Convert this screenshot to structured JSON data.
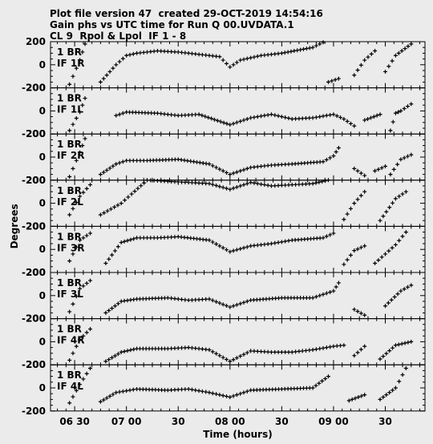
{
  "header": {
    "line1": "Plot file version 47  created 29-OCT-2019 14:54:16",
    "line2": "Gain phs vs UTC time for Run Q 00.UVDATA.1",
    "line3": "CL 9  Rpol & Lpol  IF 1 - 8"
  },
  "chart_data": {
    "type": "scatter",
    "xlabel": "Time (hours)",
    "ylabel": "Degrees",
    "xlim": [
      "06:16",
      "09:53"
    ],
    "ylim": [
      -200,
      200
    ],
    "x_ticks": [
      "06 30",
      "07 00",
      "30",
      "08 00",
      "30",
      "09 00",
      "30"
    ],
    "y_ticks": [
      "200",
      "0",
      "-200"
    ],
    "panels": [
      {
        "label1": "1 BR",
        "label2": "IF 1R"
      },
      {
        "label1": "1 BR",
        "label2": "IF 1L"
      },
      {
        "label1": "1 BR",
        "label2": "IF 2R"
      },
      {
        "label1": "1 BR",
        "label2": "IF 2L"
      },
      {
        "label1": "1 BR",
        "label2": "IF 3R"
      },
      {
        "label1": "1 BR",
        "label2": "IF 3L"
      },
      {
        "label1": "1 BR",
        "label2": "IF 4R"
      },
      {
        "label1": "1 BR",
        "label2": "IF 4L"
      }
    ],
    "series": [
      {
        "panel": 0,
        "segments": [
          [
            [
              6.45,
              -170
            ],
            [
              6.55,
              40
            ],
            [
              6.6,
              180
            ]
          ],
          [
            [
              6.75,
              -150
            ],
            [
              6.9,
              0
            ],
            [
              7.0,
              80
            ],
            [
              7.1,
              100
            ],
            [
              7.3,
              120
            ],
            [
              7.5,
              110
            ],
            [
              7.7,
              90
            ],
            [
              7.9,
              70
            ],
            [
              8.0,
              -20
            ],
            [
              8.1,
              40
            ],
            [
              8.3,
              80
            ],
            [
              8.5,
              100
            ],
            [
              8.8,
              150
            ],
            [
              8.9,
              195
            ]
          ],
          [
            [
              8.95,
              -150
            ],
            [
              9.05,
              -120
            ]
          ],
          [
            [
              9.2,
              -90
            ],
            [
              9.3,
              40
            ],
            [
              9.4,
              120
            ]
          ],
          [
            [
              9.5,
              -60
            ],
            [
              9.6,
              80
            ],
            [
              9.75,
              180
            ]
          ]
        ]
      },
      {
        "panel": 1,
        "segments": [
          [
            [
              6.45,
              -170
            ],
            [
              6.55,
              -10
            ],
            [
              6.6,
              110
            ]
          ],
          [
            [
              6.9,
              -40
            ],
            [
              7.0,
              -10
            ],
            [
              7.3,
              -20
            ],
            [
              7.5,
              -40
            ],
            [
              7.7,
              -30
            ],
            [
              8.0,
              -120
            ],
            [
              8.2,
              -60
            ],
            [
              8.4,
              -30
            ],
            [
              8.6,
              -70
            ],
            [
              8.8,
              -60
            ],
            [
              9.0,
              -30
            ],
            [
              9.1,
              -70
            ],
            [
              9.2,
              -130
            ]
          ],
          [
            [
              9.3,
              -80
            ],
            [
              9.45,
              -30
            ]
          ],
          [
            [
              9.55,
              -170
            ],
            [
              9.6,
              -20
            ],
            [
              9.65,
              0
            ],
            [
              9.75,
              60
            ]
          ]
        ]
      },
      {
        "panel": 2,
        "segments": [
          [
            [
              6.45,
              -170
            ],
            [
              6.55,
              40
            ],
            [
              6.6,
              160
            ]
          ],
          [
            [
              6.75,
              -150
            ],
            [
              6.9,
              -60
            ],
            [
              7.0,
              -30
            ],
            [
              7.2,
              -30
            ],
            [
              7.5,
              -20
            ],
            [
              7.8,
              -60
            ],
            [
              8.0,
              -150
            ],
            [
              8.2,
              -90
            ],
            [
              8.4,
              -70
            ],
            [
              8.6,
              -60
            ],
            [
              8.9,
              -40
            ],
            [
              9.0,
              10
            ],
            [
              9.05,
              80
            ]
          ],
          [
            [
              9.2,
              -100
            ],
            [
              9.3,
              -160
            ]
          ],
          [
            [
              9.4,
              -120
            ],
            [
              9.5,
              -80
            ]
          ],
          [
            [
              9.55,
              -150
            ],
            [
              9.65,
              -20
            ],
            [
              9.75,
              20
            ]
          ]
        ]
      },
      {
        "panel": 3,
        "segments": [
          [
            [
              6.45,
              -100
            ],
            [
              6.55,
              60
            ],
            [
              6.65,
              160
            ]
          ],
          [
            [
              6.75,
              -100
            ],
            [
              6.95,
              0
            ],
            [
              7.05,
              80
            ],
            [
              7.2,
              200
            ],
            [
              7.4,
              190
            ],
            [
              7.6,
              180
            ],
            [
              7.8,
              170
            ],
            [
              8.0,
              120
            ],
            [
              8.2,
              180
            ],
            [
              8.4,
              150
            ],
            [
              8.6,
              160
            ],
            [
              8.8,
              170
            ],
            [
              8.95,
              200
            ]
          ],
          [
            [
              9.1,
              -140
            ],
            [
              9.2,
              0
            ],
            [
              9.3,
              100
            ]
          ],
          [
            [
              9.45,
              -150
            ],
            [
              9.6,
              40
            ],
            [
              9.7,
              100
            ]
          ]
        ]
      },
      {
        "panel": 4,
        "segments": [
          [
            [
              6.45,
              -100
            ],
            [
              6.55,
              80
            ],
            [
              6.65,
              140
            ]
          ],
          [
            [
              6.8,
              -120
            ],
            [
              6.95,
              60
            ],
            [
              7.1,
              100
            ],
            [
              7.3,
              100
            ],
            [
              7.5,
              110
            ],
            [
              7.8,
              80
            ],
            [
              8.0,
              -20
            ],
            [
              8.2,
              30
            ],
            [
              8.4,
              50
            ],
            [
              8.6,
              80
            ],
            [
              8.9,
              100
            ],
            [
              9.0,
              140
            ]
          ],
          [
            [
              9.1,
              -130
            ],
            [
              9.2,
              -10
            ],
            [
              9.3,
              30
            ]
          ],
          [
            [
              9.4,
              -120
            ],
            [
              9.6,
              40
            ],
            [
              9.7,
              150
            ]
          ]
        ]
      },
      {
        "panel": 5,
        "segments": [
          [
            [
              6.45,
              -140
            ],
            [
              6.55,
              60
            ],
            [
              6.65,
              130
            ]
          ],
          [
            [
              6.8,
              -150
            ],
            [
              6.95,
              -50
            ],
            [
              7.1,
              -30
            ],
            [
              7.4,
              -20
            ],
            [
              7.6,
              -40
            ],
            [
              7.8,
              -30
            ],
            [
              8.0,
              -100
            ],
            [
              8.2,
              -40
            ],
            [
              8.5,
              -20
            ],
            [
              8.8,
              -20
            ],
            [
              9.0,
              40
            ],
            [
              9.05,
              110
            ]
          ],
          [
            [
              9.2,
              -120
            ],
            [
              9.3,
              -170
            ]
          ],
          [
            [
              9.5,
              -90
            ],
            [
              9.65,
              40
            ],
            [
              9.75,
              90
            ]
          ]
        ]
      },
      {
        "panel": 6,
        "segments": [
          [
            [
              6.45,
              -160
            ],
            [
              6.55,
              20
            ],
            [
              6.65,
              110
            ]
          ],
          [
            [
              6.8,
              -170
            ],
            [
              6.95,
              -90
            ],
            [
              7.1,
              -60
            ],
            [
              7.4,
              -60
            ],
            [
              7.6,
              -50
            ],
            [
              7.8,
              -70
            ],
            [
              8.0,
              -170
            ],
            [
              8.2,
              -80
            ],
            [
              8.4,
              -90
            ],
            [
              8.6,
              -90
            ],
            [
              8.8,
              -70
            ],
            [
              9.0,
              -40
            ],
            [
              9.1,
              -30
            ]
          ],
          [
            [
              9.2,
              -120
            ],
            [
              9.3,
              -40
            ]
          ],
          [
            [
              9.45,
              -150
            ],
            [
              9.6,
              -30
            ],
            [
              9.75,
              0
            ]
          ]
        ]
      },
      {
        "panel": 7,
        "segments": [
          [
            [
              6.45,
              -130
            ],
            [
              6.55,
              30
            ],
            [
              6.65,
              170
            ]
          ],
          [
            [
              6.75,
              -120
            ],
            [
              6.9,
              -40
            ],
            [
              7.1,
              -10
            ],
            [
              7.4,
              -20
            ],
            [
              7.6,
              -10
            ],
            [
              7.8,
              -40
            ],
            [
              8.0,
              -80
            ],
            [
              8.2,
              -20
            ],
            [
              8.5,
              -10
            ],
            [
              8.8,
              0
            ],
            [
              8.95,
              100
            ]
          ],
          [
            [
              9.15,
              -110
            ],
            [
              9.3,
              -60
            ]
          ],
          [
            [
              9.45,
              -100
            ],
            [
              9.6,
              0
            ],
            [
              9.7,
              170
            ]
          ]
        ]
      }
    ]
  }
}
